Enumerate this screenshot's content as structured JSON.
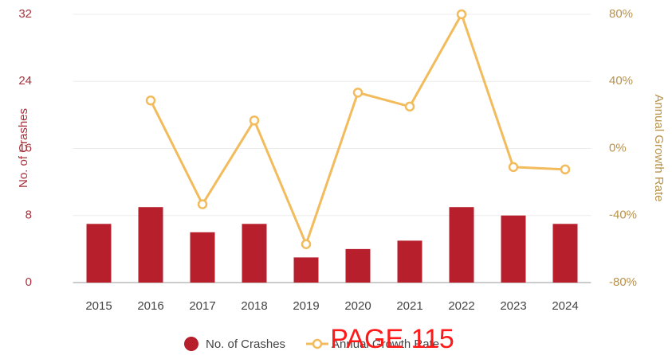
{
  "chart_data": {
    "type": "bar_line",
    "categories": [
      "2015",
      "2016",
      "2017",
      "2018",
      "2019",
      "2020",
      "2021",
      "2022",
      "2023",
      "2024"
    ],
    "series": [
      {
        "name": "No. of Crashes",
        "type": "bar",
        "color": "#b71f2c",
        "values": [
          7,
          9,
          6,
          7,
          3,
          4,
          5,
          9,
          8,
          7
        ]
      },
      {
        "name": "Annual Growth Rate",
        "type": "line",
        "axis": "y2",
        "color": "#f2bb5c",
        "values": [
          null,
          28.6,
          -33.3,
          16.7,
          -57.1,
          33.3,
          25,
          80,
          -11.1,
          -12.5
        ]
      }
    ],
    "ylabel": "No. of Crashes",
    "y2label": "Annual Growth Rate",
    "ylim": [
      0,
      32
    ],
    "yticks": [
      0,
      8,
      16,
      24,
      32
    ],
    "y2lim": [
      -80,
      80
    ],
    "y2ticks": [
      {
        "value": -80,
        "label": "-80%"
      },
      {
        "value": -40,
        "label": "-40%"
      },
      {
        "value": 0,
        "label": "0%"
      },
      {
        "value": 40,
        "label": "40%"
      },
      {
        "value": 80,
        "label": "80%"
      }
    ],
    "grid": true,
    "legend": "bottom",
    "annotation": "PAGE 115"
  }
}
